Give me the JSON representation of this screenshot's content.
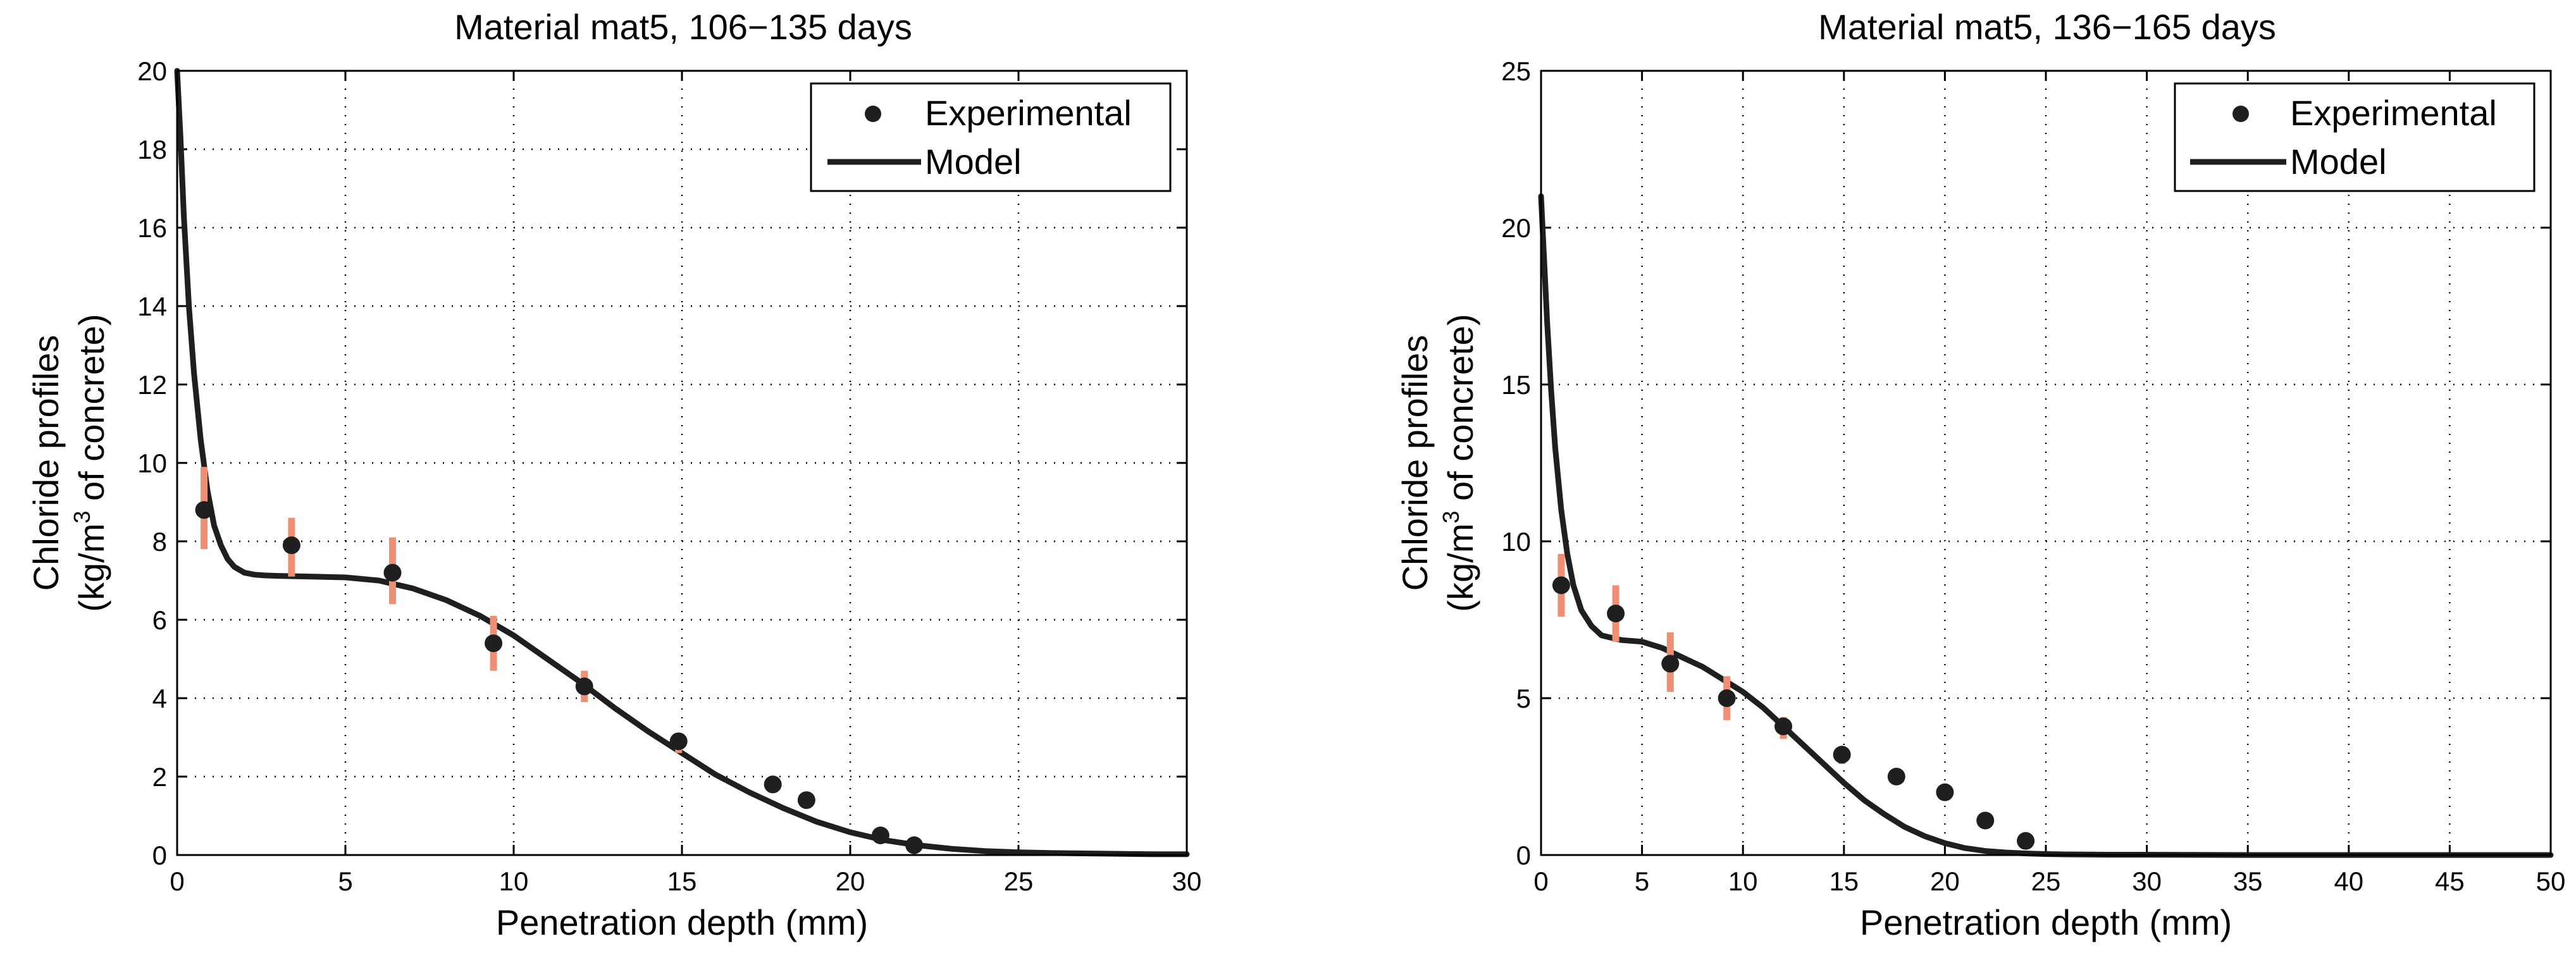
{
  "figure": {
    "background": "#ffffff",
    "marker_color": "#1f1f1f",
    "errorbar_color": "#ef8f74",
    "line_color": "#1f1f1f"
  },
  "chart_data": [
    {
      "type": "scatter",
      "title": "Material mat5, 106−135 days",
      "xlabel": "Penetration depth (mm)",
      "ylabel_line1": "Chloride profiles",
      "ylabel_line2_pre": "(kg/m",
      "ylabel_line2_sup": "3",
      "ylabel_line2_post": " of concrete)",
      "xlim": [
        0,
        30
      ],
      "ylim": [
        0,
        20
      ],
      "xticks": [
        0,
        5,
        10,
        15,
        20,
        25,
        30
      ],
      "yticks": [
        0,
        2,
        4,
        6,
        8,
        10,
        12,
        14,
        16,
        18,
        20
      ],
      "grid": true,
      "legend_position": "top-right",
      "legend": {
        "experimental": "Experimental",
        "model": "Model"
      },
      "series": [
        {
          "name": "Experimental",
          "kind": "points",
          "x": [
            0.8,
            3.4,
            6.4,
            9.4,
            12.1,
            14.9,
            17.7,
            18.7,
            20.9,
            21.9
          ],
          "y": [
            8.8,
            7.9,
            7.2,
            5.4,
            4.3,
            2.9,
            1.8,
            1.4,
            0.5,
            0.25
          ],
          "error_low": [
            7.8,
            7.1,
            6.4,
            4.7,
            3.9,
            2.6,
            1.6,
            1.2,
            0.4,
            0.2
          ],
          "error_high": [
            9.9,
            8.6,
            8.1,
            6.1,
            4.7,
            3.1,
            1.9,
            1.5,
            0.6,
            0.3
          ]
        },
        {
          "name": "Model",
          "kind": "line",
          "x": [
            0,
            0.1,
            0.2,
            0.35,
            0.5,
            0.7,
            0.9,
            1.1,
            1.3,
            1.5,
            1.7,
            2.0,
            2.3,
            2.6,
            3.0,
            4.0,
            5.0,
            6.0,
            7.0,
            8.0,
            9.0,
            10.0,
            11.0,
            12.0,
            13.0,
            14.0,
            15.0,
            16.0,
            17.0,
            18.0,
            19.0,
            20.0,
            21.0,
            22.0,
            23.0,
            24.0,
            25.0,
            26.0,
            27.0,
            28.0,
            29.0,
            30.0
          ],
          "y": [
            20,
            18.3,
            16.3,
            14.0,
            12.3,
            10.6,
            9.3,
            8.4,
            7.9,
            7.55,
            7.35,
            7.2,
            7.15,
            7.13,
            7.12,
            7.1,
            7.08,
            7.0,
            6.8,
            6.5,
            6.1,
            5.6,
            5.0,
            4.4,
            3.75,
            3.15,
            2.6,
            2.05,
            1.6,
            1.2,
            0.85,
            0.58,
            0.38,
            0.25,
            0.16,
            0.1,
            0.07,
            0.05,
            0.04,
            0.03,
            0.02,
            0.02
          ]
        }
      ]
    },
    {
      "type": "scatter",
      "title": "Material mat5, 136−165 days",
      "xlabel": "Penetration depth (mm)",
      "ylabel_line1": "Chloride profiles",
      "ylabel_line2_pre": "(kg/m",
      "ylabel_line2_sup": "3",
      "ylabel_line2_post": " of concrete)",
      "xlim": [
        0,
        50
      ],
      "ylim": [
        0,
        25
      ],
      "xticks": [
        0,
        5,
        10,
        15,
        20,
        25,
        30,
        35,
        40,
        45,
        50
      ],
      "yticks": [
        0,
        5,
        10,
        15,
        20,
        25
      ],
      "grid": true,
      "legend_position": "top-right",
      "legend": {
        "experimental": "Experimental",
        "model": "Model"
      },
      "series": [
        {
          "name": "Experimental",
          "kind": "points",
          "x": [
            1.0,
            3.7,
            6.4,
            9.2,
            12.0,
            14.9,
            17.6,
            20.0,
            22.0,
            24.0
          ],
          "y": [
            8.6,
            7.7,
            6.1,
            5.0,
            4.1,
            3.2,
            2.5,
            2.0,
            1.1,
            0.45
          ],
          "error_low": [
            7.6,
            6.8,
            5.2,
            4.3,
            3.7,
            2.9,
            2.3,
            1.9,
            1.0,
            0.4
          ],
          "error_high": [
            9.6,
            8.6,
            7.1,
            5.7,
            4.4,
            3.4,
            2.7,
            2.1,
            1.2,
            0.5
          ]
        },
        {
          "name": "Model",
          "kind": "line",
          "x": [
            0,
            0.15,
            0.3,
            0.5,
            0.7,
            1.0,
            1.3,
            1.6,
            2.0,
            2.5,
            3.0,
            4.0,
            5.0,
            6.0,
            7.0,
            8.0,
            9.0,
            10.0,
            11.0,
            12.0,
            13.0,
            14.0,
            15.0,
            16.0,
            17.0,
            18.0,
            19.0,
            20.0,
            21.0,
            22.0,
            23.0,
            24.0,
            25.0,
            26.0,
            28.0,
            30.0,
            35.0,
            40.0,
            45.0,
            50.0
          ],
          "y": [
            21,
            19.0,
            17.0,
            14.8,
            13.0,
            11.0,
            9.6,
            8.6,
            7.8,
            7.3,
            7.0,
            6.85,
            6.8,
            6.6,
            6.3,
            6.0,
            5.6,
            5.2,
            4.7,
            4.1,
            3.5,
            2.9,
            2.3,
            1.75,
            1.3,
            0.9,
            0.6,
            0.38,
            0.22,
            0.13,
            0.08,
            0.05,
            0.03,
            0.02,
            0.01,
            0.01,
            0,
            0,
            0,
            0
          ]
        }
      ]
    }
  ]
}
